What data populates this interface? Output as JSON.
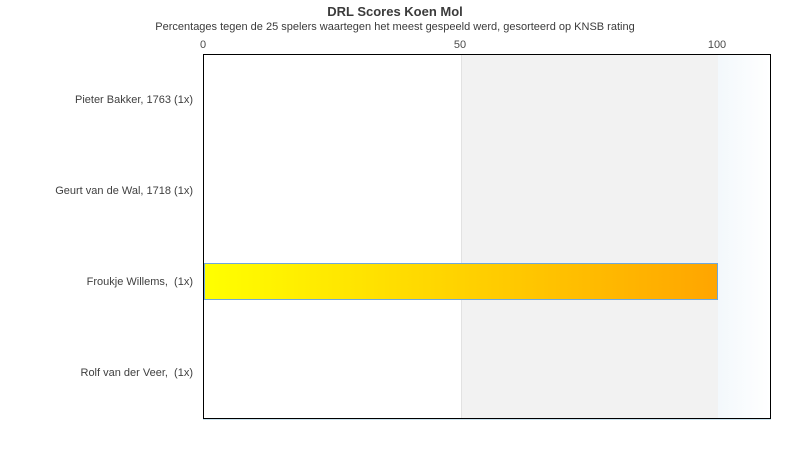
{
  "chart_data": {
    "type": "bar",
    "orientation": "horizontal",
    "title": "DRL Scores Koen Mol",
    "subtitle": "Percentages tegen de 25 spelers waartegen het meest gespeeld werd, gesorteerd op KNSB rating",
    "categories": [
      "Pieter Bakker, 1763 (1x)",
      "Geurt van de Wal, 1718 (1x)",
      "Froukje Willems,  (1x)",
      "Rolf van der Veer,  (1x)"
    ],
    "values": [
      null,
      null,
      100,
      null
    ],
    "xticks": [
      "0",
      "50",
      "100"
    ],
    "xtick_values": [
      0,
      50,
      100
    ],
    "xlim": [
      0,
      110.5
    ],
    "xlabel": "",
    "ylabel": "",
    "grid": false,
    "legend": "none",
    "bar_style": {
      "gradient_start": "#ffff00",
      "gradient_end": "#ffa500",
      "border_color": "#6fa8dc"
    },
    "background_bands": [
      {
        "from": 50,
        "to": 100,
        "color": "#f2f2f2",
        "edge_color": "#e2e2e2"
      },
      {
        "from": 100,
        "to": 110.5,
        "color_start": "#f3f8fc",
        "color_end": "#ffffff"
      }
    ],
    "colors": {
      "plot_border": "#000000",
      "title_text": "#3b3b3b",
      "label_text": "#3f3f3f",
      "tick_text": "#4a4a4a",
      "bottom_shadow_line": "#cbe3ef",
      "background": "#ffffff"
    }
  }
}
